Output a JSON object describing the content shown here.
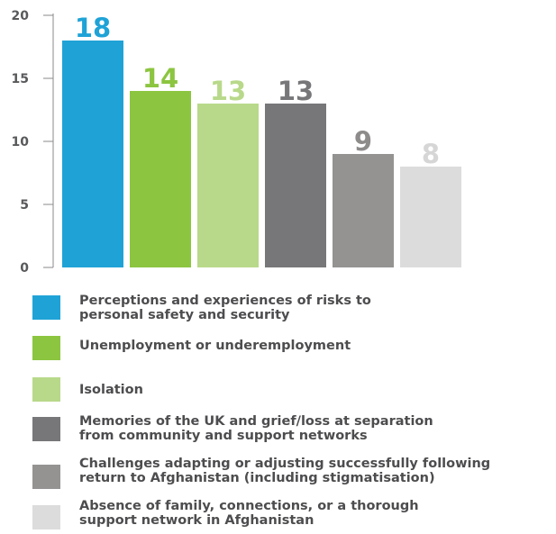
{
  "chart_data": {
    "type": "bar",
    "title": "",
    "xlabel": "",
    "ylabel": "",
    "ylim": [
      0,
      20
    ],
    "yticks": [
      0,
      5,
      10,
      15,
      20
    ],
    "grid": false,
    "legend_position": "bottom",
    "categories": [
      "Perceptions and experiences of risks to personal safety and security",
      "Unemployment or underemployment",
      "Isolation",
      "Memories of the UK and grief/loss at separation from community and support networks",
      "Challenges adapting or adjusting successfully following return to Afghanistan (including stigmatisation)",
      "Absence of family, connections, or a thorough support network in Afghanistan"
    ],
    "values": [
      18,
      14,
      13,
      13,
      9,
      8
    ],
    "colors": [
      "#1fa3d7",
      "#8cc540",
      "#b8d98a",
      "#77777a",
      "#959292",
      "#dcdcdc"
    ],
    "data_label_colors": [
      "#1fa3d7",
      "#8cc540",
      "#b8d98a",
      "#77777a",
      "#8e8b8b",
      "#d6d6d6"
    ]
  },
  "legend": [
    {
      "line1": "Perceptions and experiences of risks to",
      "line2": "personal safety and security"
    },
    {
      "line1": "Unemployment or underemployment",
      "line2": ""
    },
    {
      "line1": "Isolation",
      "line2": ""
    },
    {
      "line1": "Memories of the UK and grief/loss at separation",
      "line2": "from community and support networks"
    },
    {
      "line1": "Challenges adapting or adjusting successfully following",
      "line2": "return to Afghanistan (including stigmatisation)"
    },
    {
      "line1": "Absence of family, connections, or a thorough",
      "line2": "support network in Afghanistan"
    }
  ]
}
